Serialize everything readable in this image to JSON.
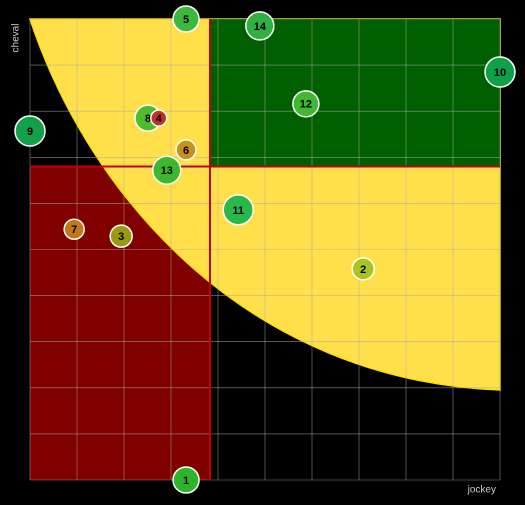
{
  "chart_data": {
    "type": "scatter",
    "x_label": "jockey",
    "y_label": "cheval",
    "xlim": [
      0,
      10
    ],
    "ylim": [
      0,
      10
    ],
    "quadrant_x": 3.83,
    "quadrant_y": 6.8,
    "grid": true,
    "labels": [
      "1",
      "2",
      "3",
      "5",
      "6",
      "7",
      "8",
      "4",
      "9",
      "10",
      "11",
      "12",
      "13",
      "14"
    ],
    "x": [
      3.32,
      7.09,
      1.94,
      3.32,
      3.32,
      0.94,
      2.51,
      2.74,
      0,
      10,
      4.43,
      5.87,
      2.91,
      4.89
    ],
    "values": [
      0,
      4.58,
      5.29,
      10,
      7.16,
      5.44,
      7.85,
      7.85,
      7.57,
      8.85,
      5.86,
      8.16,
      6.72,
      9.85
    ],
    "sizes": [
      13,
      11,
      11,
      13,
      10,
      10,
      13,
      8,
      15,
      15,
      15,
      13,
      14,
      14
    ],
    "colors": [
      "#2db52d",
      "#a8c41e",
      "#9a9a10",
      "#3cb83c",
      "#c8901e",
      "#c07818",
      "#4cbd2c",
      "#c0302a",
      "#12a04a",
      "#0fa04a",
      "#2ab84a",
      "#40b830",
      "#3cb82c",
      "#30b040"
    ]
  }
}
